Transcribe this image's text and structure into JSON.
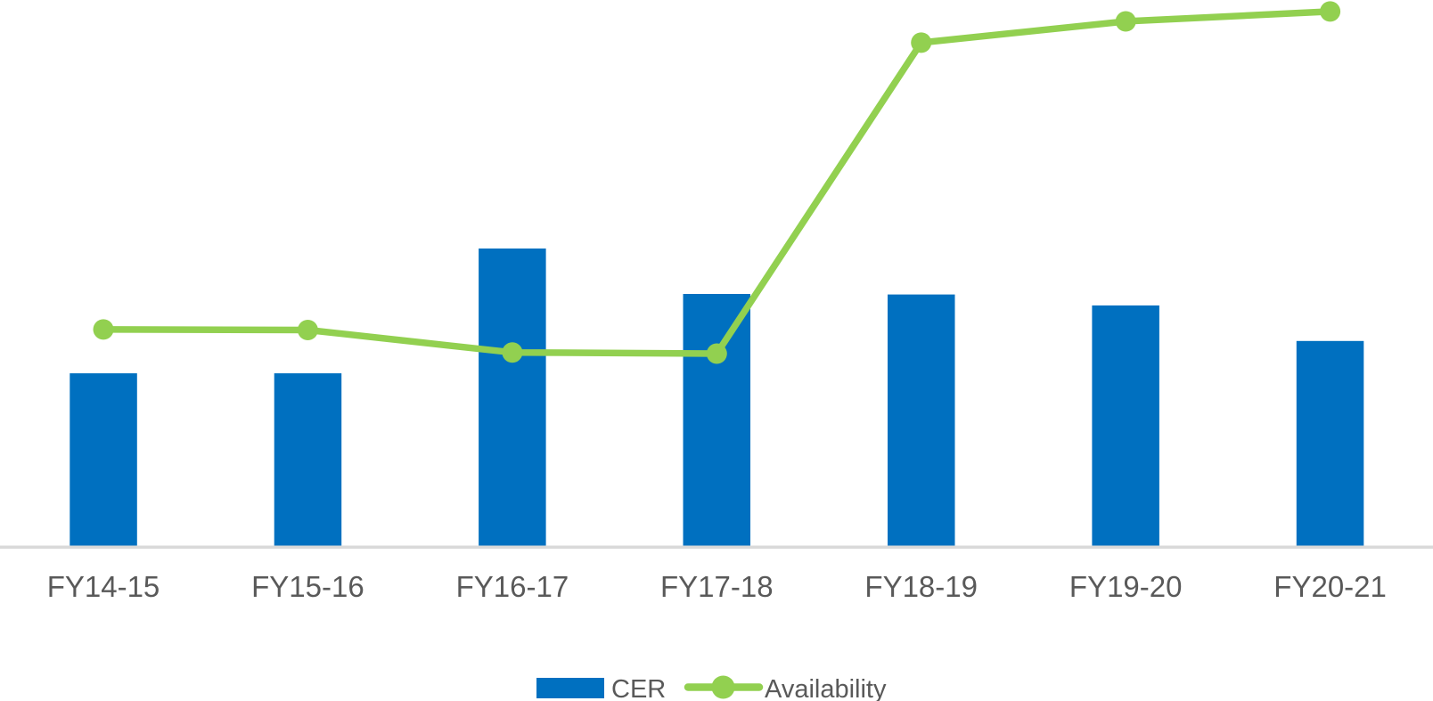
{
  "chart_data": {
    "type": "bar",
    "subtype": "bar-line-combo",
    "title": "",
    "xlabel": "",
    "ylabel": "",
    "categories": [
      "FY14-15",
      "FY15-16",
      "FY16-17",
      "FY17-18",
      "FY18-19",
      "FY19-20",
      "FY20-21"
    ],
    "series": [
      {
        "name": "CER",
        "type": "bar",
        "color": "#0070C0",
        "values": [
          31.8,
          31.8,
          54.6,
          46.3,
          46.2,
          44.2,
          37.7
        ]
      },
      {
        "name": "Availability",
        "type": "line",
        "color": "#92D050",
        "marker": "circle",
        "values": [
          39.8,
          39.7,
          35.6,
          35.4,
          92.2,
          96.1,
          97.9
        ]
      }
    ],
    "ylim": [
      0,
      100
    ],
    "y_axis_visible": false,
    "x_axis_line_visible": true,
    "grid": false,
    "data_labels": false,
    "values_note": "no value axis shown in image; series values estimated as percent of plot height",
    "legend": {
      "position": "bottom-center",
      "entries": [
        "CER",
        "Availability"
      ]
    }
  },
  "colors": {
    "bar_fill": "#0070C0",
    "line_stroke": "#92D050",
    "axis_line": "#D9D9D9",
    "label_text": "#595959",
    "background": "#FFFFFF"
  }
}
